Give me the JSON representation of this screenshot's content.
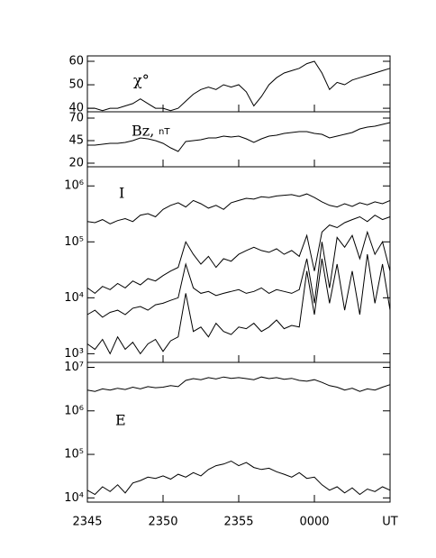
{
  "chart_data": [
    {
      "type": "line",
      "label": "χ°",
      "xlim": [
        0,
        20
      ],
      "ylim": [
        38.5,
        62.3
      ],
      "yticks": [
        40,
        50,
        60
      ],
      "color": "#000000",
      "x": [
        0,
        0.5,
        1,
        1.5,
        2,
        2.5,
        3,
        3.5,
        4,
        4.5,
        5,
        5.5,
        6,
        6.5,
        7,
        7.5,
        8,
        8.5,
        9,
        9.5,
        10,
        10.5,
        11,
        11.5,
        12,
        12.5,
        13,
        13.5,
        14,
        14.5,
        15,
        15.5,
        16,
        16.5,
        17,
        17.5,
        18,
        18.5,
        19,
        19.5,
        20
      ],
      "series": [
        {
          "values": [
            40,
            40,
            39,
            40,
            40,
            41,
            42,
            44,
            42,
            40,
            40,
            39,
            40,
            43,
            46,
            48,
            49,
            48,
            50,
            49,
            50,
            47,
            41,
            45,
            50,
            53,
            55,
            56,
            57,
            59,
            60,
            55,
            48,
            51,
            50,
            52,
            53,
            54,
            55,
            56,
            57
          ]
        }
      ]
    },
    {
      "type": "line",
      "label": "Bz,",
      "units": "nT",
      "xlim": [
        0,
        20
      ],
      "ylim": [
        16,
        77
      ],
      "yticks": [
        20,
        45,
        70
      ],
      "color": "#000000",
      "x": [
        0,
        0.5,
        1,
        1.5,
        2,
        2.5,
        3,
        3.5,
        4,
        4.5,
        5,
        5.5,
        6,
        6.5,
        7,
        7.5,
        8,
        8.5,
        9,
        9.5,
        10,
        10.5,
        11,
        11.5,
        12,
        12.5,
        13,
        13.5,
        14,
        14.5,
        15,
        15.5,
        16,
        16.5,
        17,
        17.5,
        18,
        18.5,
        19,
        19.5,
        20
      ],
      "series": [
        {
          "values": [
            40,
            40,
            41,
            42,
            42,
            43,
            45,
            48,
            47,
            45,
            42,
            37,
            33,
            44,
            45,
            46,
            48,
            48,
            50,
            49,
            50,
            47,
            43,
            47,
            50,
            51,
            53,
            54,
            55,
            55,
            53,
            52,
            48,
            50,
            52,
            54,
            58,
            60,
            61,
            63,
            65
          ]
        }
      ]
    },
    {
      "type": "line",
      "label": "I",
      "log": true,
      "xlim": [
        0,
        20
      ],
      "ylim": [
        700,
        2200000
      ],
      "color": "#000000",
      "yticks": [
        {
          "value": 1000,
          "label": "10³"
        },
        {
          "value": 10000,
          "label": "10⁴"
        },
        {
          "value": 100000,
          "label": "10⁵"
        },
        {
          "value": 1000000,
          "label": "10⁶"
        }
      ],
      "x": [
        0,
        0.5,
        1,
        1.5,
        2,
        2.5,
        3,
        3.5,
        4,
        4.5,
        5,
        5.5,
        6,
        6.5,
        7,
        7.5,
        8,
        8.5,
        9,
        9.5,
        10,
        10.5,
        11,
        11.5,
        12,
        12.5,
        13,
        13.5,
        14,
        14.5,
        15,
        15.5,
        16,
        16.5,
        17,
        17.5,
        18,
        18.5,
        19,
        19.5,
        20
      ],
      "series": [
        {
          "values": [
            230000,
            220000,
            250000,
            210000,
            240000,
            260000,
            230000,
            300000,
            320000,
            280000,
            380000,
            450000,
            500000,
            420000,
            550000,
            480000,
            400000,
            450000,
            380000,
            500000,
            550000,
            600000,
            580000,
            640000,
            620000,
            660000,
            680000,
            700000,
            650000,
            720000,
            620000,
            520000,
            450000,
            420000,
            480000,
            430000,
            500000,
            460000,
            520000,
            480000,
            550000
          ]
        },
        {
          "values": [
            15000,
            12000,
            16000,
            14000,
            18000,
            15000,
            20000,
            17000,
            22000,
            20000,
            25000,
            30000,
            35000,
            100000,
            60000,
            40000,
            55000,
            35000,
            50000,
            45000,
            60000,
            70000,
            80000,
            70000,
            65000,
            75000,
            60000,
            70000,
            55000,
            130000,
            30000,
            150000,
            200000,
            180000,
            220000,
            250000,
            280000,
            230000,
            300000,
            250000,
            280000
          ]
        },
        {
          "values": [
            5000,
            6000,
            4500,
            5500,
            6000,
            5000,
            6500,
            7000,
            6000,
            7500,
            8000,
            9000,
            10000,
            40000,
            15000,
            12000,
            13000,
            11000,
            12000,
            13000,
            14000,
            12000,
            13000,
            15000,
            12000,
            14000,
            13000,
            12000,
            14000,
            50000,
            8000,
            100000,
            15000,
            120000,
            80000,
            130000,
            50000,
            150000,
            60000,
            100000,
            30000
          ]
        },
        {
          "values": [
            1500,
            1200,
            1800,
            1000,
            2000,
            1200,
            1600,
            1000,
            1500,
            1800,
            1100,
            1700,
            2000,
            12000,
            2500,
            3000,
            2000,
            3500,
            2500,
            2200,
            3000,
            2800,
            3500,
            2500,
            3000,
            4000,
            2800,
            3200,
            3000,
            30000,
            5000,
            50000,
            8000,
            40000,
            6000,
            30000,
            5000,
            60000,
            8000,
            40000,
            6000
          ]
        }
      ]
    },
    {
      "type": "line",
      "label": "E",
      "log": true,
      "xlim": [
        0,
        20
      ],
      "ylim": [
        8000,
        13000000
      ],
      "color": "#000000",
      "yticks": [
        {
          "value": 10000,
          "label": "10⁴"
        },
        {
          "value": 100000,
          "label": "10⁵"
        },
        {
          "value": 1000000,
          "label": "10⁶"
        },
        {
          "value": 10000000,
          "label": "10⁷"
        }
      ],
      "xticks": [
        {
          "value": 0,
          "label": "2345"
        },
        {
          "value": 5,
          "label": "2350"
        },
        {
          "value": 10,
          "label": "2355"
        },
        {
          "value": 15,
          "label": "0000"
        },
        {
          "value": 20,
          "label": "UT"
        }
      ],
      "x": [
        0,
        0.5,
        1,
        1.5,
        2,
        2.5,
        3,
        3.5,
        4,
        4.5,
        5,
        5.5,
        6,
        6.5,
        7,
        7.5,
        8,
        8.5,
        9,
        9.5,
        10,
        10.5,
        11,
        11.5,
        12,
        12.5,
        13,
        13.5,
        14,
        14.5,
        15,
        15.5,
        16,
        16.5,
        17,
        17.5,
        18,
        18.5,
        19,
        19.5,
        20
      ],
      "series": [
        {
          "values": [
            3000000,
            2800000,
            3200000,
            3000000,
            3300000,
            3100000,
            3500000,
            3200000,
            3600000,
            3400000,
            3500000,
            3800000,
            3600000,
            5000000,
            5500000,
            5200000,
            5800000,
            5400000,
            6000000,
            5600000,
            5800000,
            5500000,
            5200000,
            6000000,
            5500000,
            5800000,
            5300000,
            5600000,
            5000000,
            4800000,
            5200000,
            4500000,
            3800000,
            3500000,
            3000000,
            3300000,
            2800000,
            3200000,
            3000000,
            3500000,
            4000000
          ]
        },
        {
          "values": [
            15000,
            12000,
            18000,
            14000,
            20000,
            13000,
            22000,
            25000,
            30000,
            28000,
            32000,
            27000,
            35000,
            30000,
            38000,
            32000,
            45000,
            55000,
            60000,
            70000,
            55000,
            65000,
            50000,
            45000,
            48000,
            40000,
            35000,
            30000,
            38000,
            28000,
            30000,
            20000,
            15000,
            18000,
            13000,
            17000,
            12000,
            16000,
            14000,
            18000,
            15000
          ]
        }
      ]
    }
  ]
}
